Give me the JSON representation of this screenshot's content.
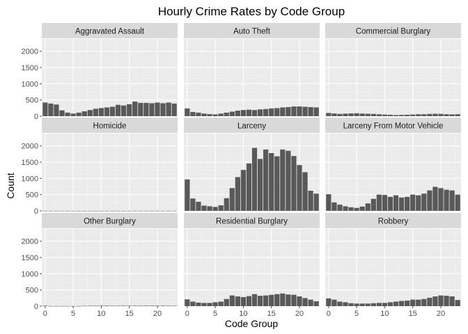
{
  "chart_data": {
    "type": "bar",
    "title": "Hourly Crime Rates by Code Group",
    "xlabel": "Code Group",
    "ylabel": "Count",
    "xlim": [
      -0.6,
      23.6
    ],
    "ylim": [
      0,
      2000
    ],
    "x_ticks": [
      0,
      5,
      10,
      15,
      20
    ],
    "y_ticks": [
      0,
      500,
      1000,
      1500,
      2000
    ],
    "grid": true,
    "legend": "none",
    "colors": {
      "bar": "#595959",
      "panel_bg": "#ebebeb",
      "strip_bg": "#d9d9d9",
      "grid_major": "#ffffff",
      "grid_minor": "#f2f2f2",
      "tick": "#4d4d4d"
    },
    "x": [
      0,
      1,
      2,
      3,
      4,
      5,
      6,
      7,
      8,
      9,
      10,
      11,
      12,
      13,
      14,
      15,
      16,
      17,
      18,
      19,
      20,
      21,
      22,
      23
    ],
    "facets": [
      {
        "name": "Aggravated Assault",
        "values": [
          420,
          390,
          360,
          180,
          110,
          80,
          110,
          150,
          190,
          230,
          250,
          270,
          290,
          350,
          330,
          370,
          450,
          410,
          410,
          400,
          420,
          400,
          420,
          390
        ]
      },
      {
        "name": "Auto Theft",
        "values": [
          240,
          130,
          110,
          80,
          65,
          55,
          80,
          110,
          140,
          170,
          190,
          200,
          190,
          210,
          220,
          240,
          250,
          270,
          280,
          300,
          300,
          290,
          280,
          270
        ]
      },
      {
        "name": "Commercial Burglary",
        "values": [
          100,
          85,
          70,
          80,
          85,
          90,
          80,
          75,
          70,
          60,
          50,
          45,
          35,
          40,
          45,
          50,
          60,
          60,
          70,
          75,
          70,
          60,
          55,
          60
        ]
      },
      {
        "name": "Homicide",
        "values": [
          3,
          3,
          3,
          2,
          2,
          1,
          1,
          1,
          1,
          1,
          2,
          2,
          2,
          2,
          2,
          2,
          3,
          3,
          3,
          3,
          3,
          3,
          3,
          3
        ]
      },
      {
        "name": "Larceny",
        "values": [
          970,
          380,
          280,
          160,
          140,
          120,
          170,
          390,
          700,
          1040,
          1260,
          1460,
          1940,
          1600,
          1890,
          1780,
          1680,
          1890,
          1850,
          1690,
          1410,
          1190,
          620,
          530
        ]
      },
      {
        "name": "Larceny From Motor Vehicle",
        "values": [
          510,
          260,
          190,
          140,
          110,
          90,
          130,
          230,
          370,
          500,
          490,
          430,
          480,
          410,
          430,
          500,
          480,
          530,
          630,
          740,
          700,
          650,
          630,
          500
        ]
      },
      {
        "name": "Other Burglary",
        "values": [
          14,
          4,
          4,
          3,
          3,
          3,
          3,
          10,
          12,
          12,
          14,
          15,
          12,
          10,
          14,
          13,
          12,
          14,
          14,
          15,
          15,
          14,
          12,
          12
        ]
      },
      {
        "name": "Residential Burglary",
        "values": [
          210,
          140,
          110,
          100,
          100,
          120,
          140,
          220,
          330,
          300,
          280,
          310,
          370,
          320,
          330,
          350,
          370,
          390,
          360,
          350,
          300,
          250,
          200,
          150
        ]
      },
      {
        "name": "Robbery",
        "values": [
          240,
          200,
          140,
          120,
          90,
          80,
          80,
          80,
          90,
          100,
          100,
          120,
          140,
          160,
          170,
          200,
          200,
          220,
          260,
          300,
          330,
          320,
          300,
          190
        ]
      }
    ]
  }
}
